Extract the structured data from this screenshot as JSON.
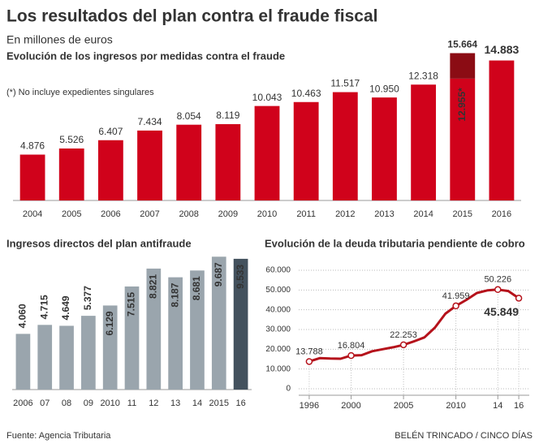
{
  "title": "Los resultados del plan contra el fraude fiscal",
  "subtitle": "En millones de euros",
  "source": "Fuente: Agencia Tributaria",
  "credit": "BELÉN TRINCADO / CINCO DÍAS",
  "chart_data": [
    {
      "type": "stacked-bar",
      "title": "Evolución de los ingresos por medidas contra el fraude",
      "note": "(*) No incluye expedientes singulares",
      "categories": [
        "2004",
        "2005",
        "2006",
        "2007",
        "2008",
        "2009",
        "2010",
        "2011",
        "2012",
        "2013",
        "2014",
        "2015",
        "2016"
      ],
      "series": [
        {
          "color": "#d0021b",
          "values": [
            4876,
            5526,
            6407,
            7434,
            8054,
            8119,
            10043,
            10463,
            11517,
            10950,
            12318,
            12955,
            14883
          ],
          "value_labels": [
            "4.876",
            "5.526",
            "6.407",
            "7.434",
            "8.054",
            "8.119",
            "10.043",
            "10.463",
            "11.517",
            "10.950",
            "12.318",
            "12.955*",
            "14.883"
          ]
        },
        {
          "color": "#8b0c14",
          "values": [
            null,
            null,
            null,
            null,
            null,
            null,
            null,
            null,
            null,
            null,
            null,
            2709,
            null
          ]
        }
      ],
      "annotations": [
        {
          "text": "15.664",
          "category": "2015"
        }
      ],
      "ylim": [
        0,
        17000
      ]
    },
    {
      "type": "bar",
      "title": "Ingresos directos del plan antifraude",
      "categories": [
        "2006",
        "07",
        "08",
        "09",
        "2010",
        "11",
        "12",
        "13",
        "14",
        "2015",
        "16"
      ],
      "values": [
        4060,
        4715,
        4649,
        5377,
        6129,
        7515,
        8821,
        8187,
        8681,
        9687,
        9533
      ],
      "value_labels": [
        "4.060",
        "4.715",
        "4.649",
        "5.377",
        "6.129",
        "7.515",
        "8.821",
        "8.187",
        "8.681",
        "9.687",
        "9.533"
      ],
      "colors": [
        "#9aa5ad",
        "#9aa5ad",
        "#9aa5ad",
        "#9aa5ad",
        "#9aa5ad",
        "#9aa5ad",
        "#9aa5ad",
        "#9aa5ad",
        "#9aa5ad",
        "#9aa5ad",
        "#44525e"
      ],
      "ylim": [
        0,
        10000
      ]
    },
    {
      "type": "line",
      "title": "Evolución de la deuda tributaria pendiente de cobro",
      "x": [
        1996,
        1997,
        1998,
        1999,
        2000,
        2001,
        2002,
        2003,
        2004,
        2005,
        2006,
        2007,
        2008,
        2009,
        2010,
        2011,
        2012,
        2013,
        2014,
        2015,
        2016
      ],
      "values": [
        13788,
        15500,
        15300,
        15200,
        16804,
        17000,
        19000,
        20000,
        21000,
        22253,
        24000,
        26000,
        31000,
        38000,
        41959,
        45000,
        48500,
        49800,
        50226,
        49500,
        45849
      ],
      "value_labels": [
        "13.788",
        null,
        null,
        null,
        "16.804",
        null,
        null,
        null,
        null,
        "22.253",
        null,
        null,
        null,
        null,
        "41.959",
        null,
        null,
        null,
        "50.226",
        null,
        "45.849"
      ],
      "color": "#b5121b",
      "xlim": [
        1995,
        2017
      ],
      "xticks": [
        1996,
        2000,
        2005,
        2010,
        {
          "value": 2014,
          "label": "14"
        },
        {
          "value": 2016,
          "label": "16"
        }
      ],
      "ylim": [
        0,
        60000
      ],
      "yticks": [
        0,
        {
          "value": 10000,
          "label": "10.000"
        },
        {
          "value": 20000,
          "label": "20.000"
        },
        {
          "value": 30000,
          "label": "30.000"
        },
        {
          "value": 40000,
          "label": "40.000"
        },
        {
          "value": 50000,
          "label": "50.000"
        },
        {
          "value": 60000,
          "label": "60.000"
        }
      ],
      "grid": true
    }
  ]
}
